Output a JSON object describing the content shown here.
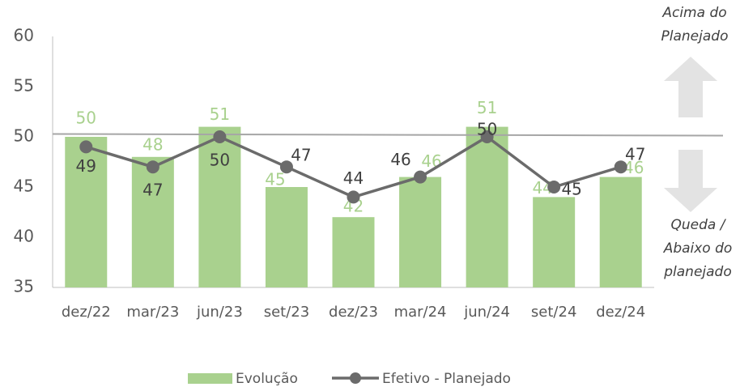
{
  "chart_data": {
    "type": "bar-line",
    "categories": [
      "dez/22",
      "mar/23",
      "jun/23",
      "set/23",
      "dez/23",
      "mar/24",
      "jun/24",
      "set/24",
      "dez/24"
    ],
    "series": [
      {
        "name": "Evolução",
        "type": "bar",
        "color": "#a9d18e",
        "values": [
          50,
          48,
          51,
          45,
          42,
          46,
          51,
          44,
          46
        ]
      },
      {
        "name": "Efetivo - Planejado",
        "type": "line",
        "color": "#6b6b6b",
        "values": [
          49,
          47,
          50,
          47,
          44,
          46,
          50,
          45,
          47
        ]
      }
    ],
    "reference_line": 50.2,
    "ylim": [
      35,
      60
    ],
    "yticks": [
      35,
      40,
      45,
      50,
      55,
      60
    ],
    "annotations": [
      "Acima do",
      "Planejado",
      "Queda /",
      "Abaixo do",
      "planejado"
    ]
  }
}
